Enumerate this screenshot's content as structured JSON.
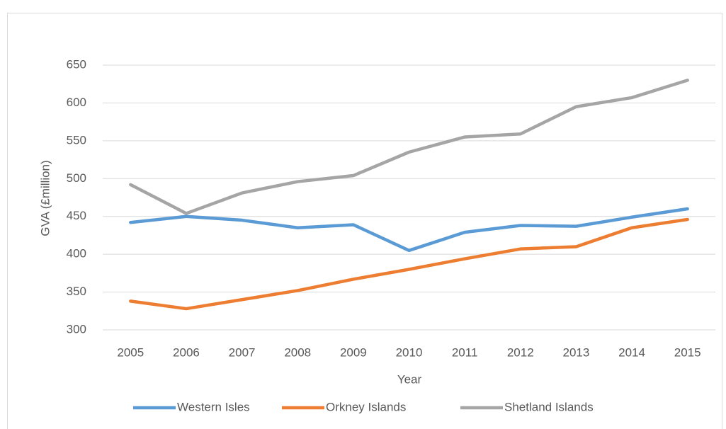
{
  "chart_data": {
    "type": "line",
    "x_label": "Year",
    "y_label": "GVA (£million)",
    "categories": [
      "2005",
      "2006",
      "2007",
      "2008",
      "2009",
      "2010",
      "2011",
      "2012",
      "2013",
      "2014",
      "2015"
    ],
    "series": [
      {
        "name": "Western Isles",
        "color": "#5b9bd5",
        "values": [
          442,
          450,
          445,
          435,
          439,
          405,
          429,
          438,
          437,
          449,
          460
        ]
      },
      {
        "name": "Orkney Islands",
        "color": "#ed7d31",
        "values": [
          338,
          328,
          340,
          352,
          367,
          380,
          394,
          407,
          410,
          435,
          446
        ]
      },
      {
        "name": "Shetland Islands",
        "color": "#a5a5a5",
        "values": [
          492,
          454,
          481,
          496,
          504,
          535,
          555,
          559,
          595,
          607,
          630
        ]
      }
    ],
    "ylim": [
      300,
      650
    ],
    "yticks": [
      300,
      350,
      400,
      450,
      500,
      550,
      600,
      650
    ],
    "grid": true,
    "legend": "bottom"
  }
}
